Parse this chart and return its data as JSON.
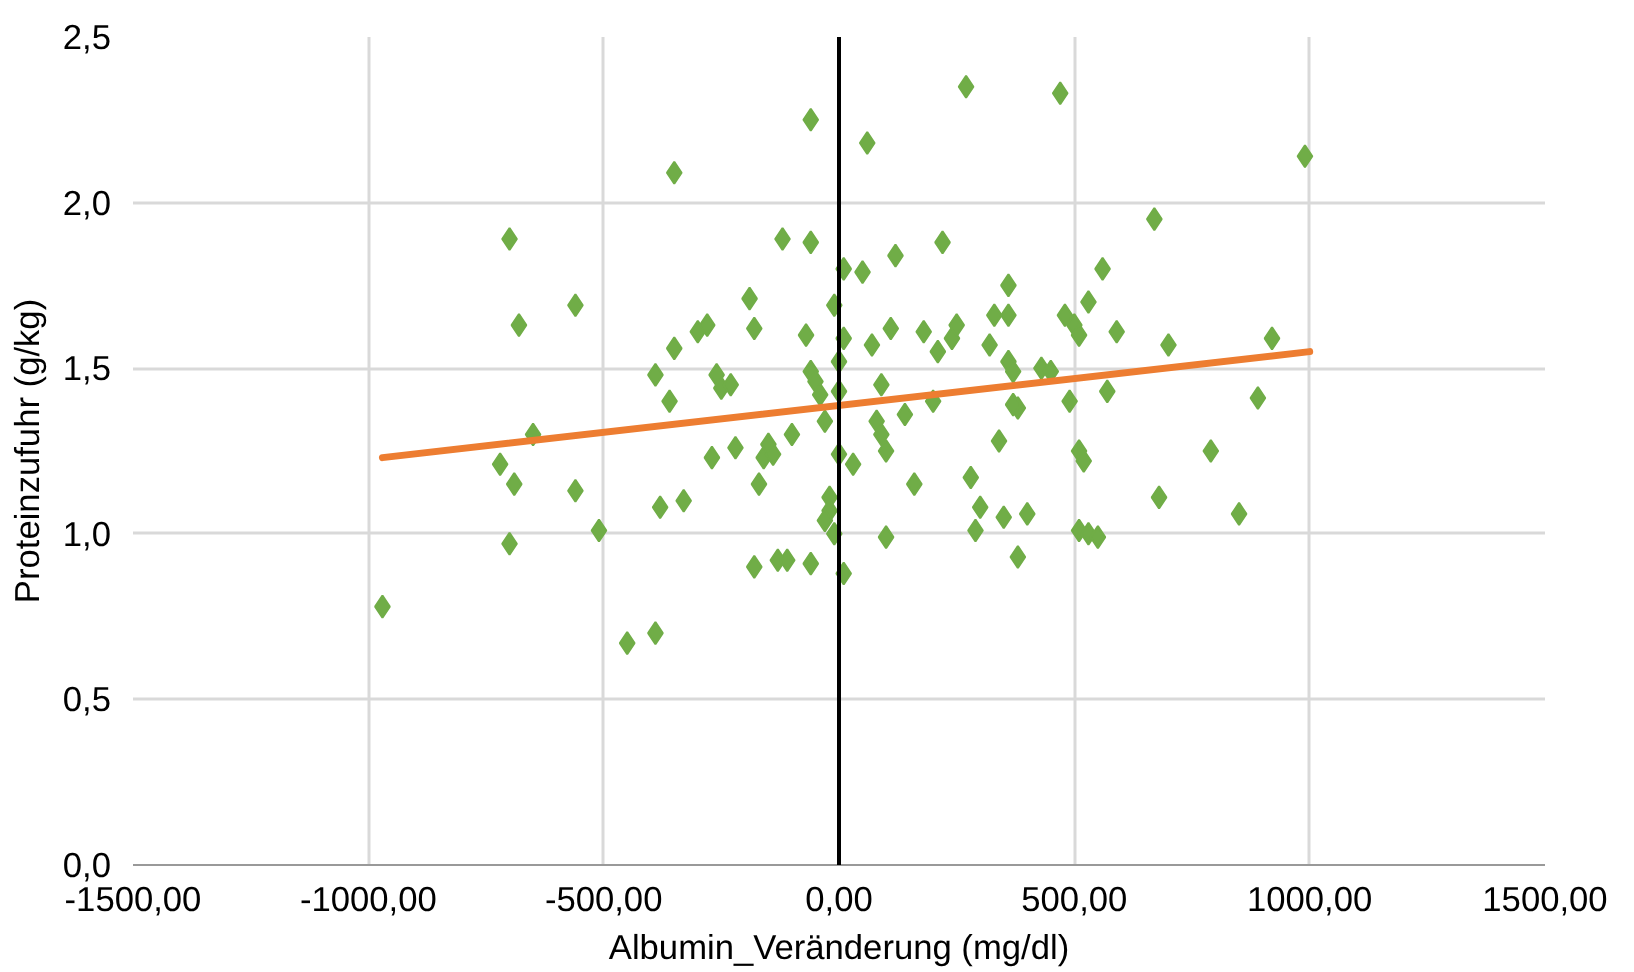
{
  "chart_data": {
    "type": "scatter",
    "xlabel": "Albumin_Veränderung (mg/dl)",
    "ylabel": "Proteinzufuhr (g/kg)",
    "marker": "diamond",
    "grid": true,
    "xlim": [
      -1500,
      1500
    ],
    "ylim": [
      0,
      2.5
    ],
    "xticks": [
      {
        "value": -1500,
        "label": "-1500,00"
      },
      {
        "value": -1000,
        "label": "-1000,00"
      },
      {
        "value": -500,
        "label": "-500,00"
      },
      {
        "value": 0,
        "label": "0,00"
      },
      {
        "value": 500,
        "label": "500,00"
      },
      {
        "value": 1000,
        "label": "1000,00"
      },
      {
        "value": 1500,
        "label": "1500,00"
      }
    ],
    "yticks": [
      {
        "value": 0,
        "label": "0,0"
      },
      {
        "value": 0.5,
        "label": "0,5"
      },
      {
        "value": 1,
        "label": "1,0"
      },
      {
        "value": 1.5,
        "label": "1,5"
      },
      {
        "value": 2,
        "label": "2,0"
      },
      {
        "value": 2.5,
        "label": "2,5"
      }
    ],
    "ref_lines": [
      {
        "axis": "x",
        "value": 0,
        "color": "#000000"
      }
    ],
    "series": [
      {
        "color": "#70ad47",
        "x": [
          -970,
          -700,
          -680,
          -650,
          -720,
          -690,
          -700,
          -560,
          -560,
          -510,
          -450,
          -390,
          -350,
          -350,
          -330,
          -380,
          -360,
          -390,
          -300,
          -280,
          -260,
          -250,
          -230,
          -220,
          -270,
          -190,
          -180,
          -170,
          -160,
          -150,
          -140,
          -120,
          -100,
          -130,
          -110,
          -180,
          -60,
          -60,
          -70,
          -60,
          -50,
          -40,
          -30,
          -20,
          -20,
          -30,
          -60,
          -10,
          0,
          10,
          10,
          0,
          0,
          10,
          -10,
          60,
          50,
          70,
          90,
          80,
          90,
          100,
          110,
          120,
          100,
          140,
          160,
          180,
          200,
          210,
          220,
          240,
          250,
          270,
          280,
          300,
          290,
          320,
          330,
          340,
          350,
          360,
          360,
          360,
          370,
          380,
          370,
          380,
          400,
          430,
          450,
          470,
          480,
          490,
          500,
          510,
          510,
          520,
          510,
          530,
          550,
          530,
          560,
          570,
          590,
          670,
          680,
          700,
          790,
          850,
          890,
          920,
          990,
          30
        ],
        "values": [
          0.78,
          1.89,
          1.63,
          1.3,
          1.21,
          1.15,
          0.97,
          1.69,
          1.13,
          1.01,
          0.67,
          0.7,
          2.09,
          1.56,
          1.1,
          1.08,
          1.4,
          1.48,
          1.61,
          1.63,
          1.48,
          1.44,
          1.45,
          1.26,
          1.23,
          1.71,
          1.62,
          1.15,
          1.23,
          1.27,
          1.24,
          1.89,
          1.3,
          0.92,
          0.92,
          0.9,
          1.88,
          2.25,
          1.6,
          1.49,
          1.46,
          1.42,
          1.34,
          1.11,
          1.07,
          1.04,
          0.91,
          1.69,
          1.43,
          1.8,
          1.59,
          1.52,
          1.24,
          0.88,
          1.0,
          2.18,
          1.79,
          1.57,
          1.45,
          1.34,
          1.3,
          1.25,
          1.62,
          1.84,
          0.99,
          1.36,
          1.15,
          1.61,
          1.4,
          1.55,
          1.88,
          1.59,
          1.63,
          2.35,
          1.17,
          1.08,
          1.01,
          1.57,
          1.66,
          1.28,
          1.05,
          1.75,
          1.66,
          1.52,
          1.49,
          1.38,
          1.39,
          0.93,
          1.06,
          1.5,
          1.49,
          2.33,
          1.66,
          1.4,
          1.63,
          1.6,
          1.25,
          1.22,
          1.01,
          1.0,
          0.99,
          1.7,
          1.8,
          1.43,
          1.61,
          1.95,
          1.11,
          1.57,
          1.25,
          1.06,
          1.41,
          1.59,
          2.14,
          1.21
        ]
      },
      {
        "type": "line",
        "marker": "none",
        "color": "#ed7d31",
        "x": [
          -970,
          1000
        ],
        "values": [
          1.23,
          1.55
        ]
      }
    ]
  }
}
